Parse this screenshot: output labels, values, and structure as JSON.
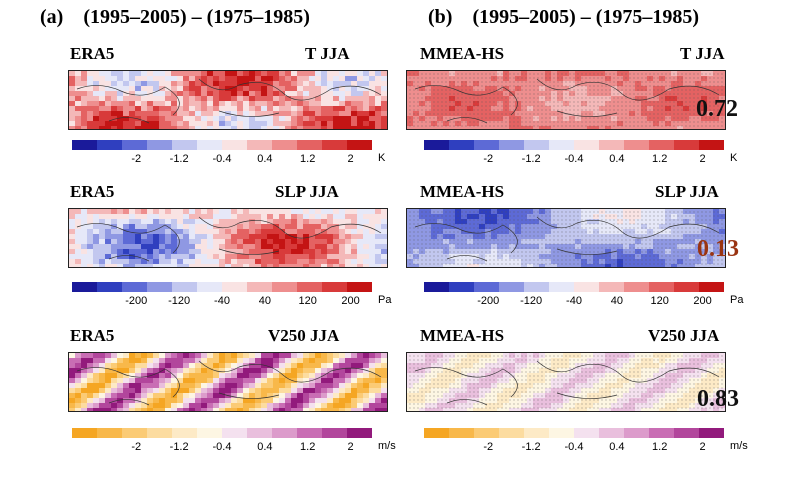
{
  "columns": [
    {
      "tag": "(a)",
      "title": "(1995–2005) – (1975–1985)"
    },
    {
      "tag": "(b)",
      "title": "(1995–2005) – (1975–1985)"
    }
  ],
  "rows": [
    {
      "left": {
        "source": "ERA5",
        "var": "T JJA"
      },
      "right": {
        "source": "MMEA-HS",
        "var": "T JJA",
        "corr": "0.72",
        "corr_color": "#111111"
      },
      "ticks": [
        "-2",
        "-1.2",
        "-0.4",
        "0.4",
        "1.2",
        "2"
      ],
      "unit": "K",
      "palette": [
        "#1a1a9a",
        "#2f3fbf",
        "#5d6ad6",
        "#8f98e3",
        "#c2c7ef",
        "#e6e8f8",
        "#f9e3e3",
        "#f4b8b8",
        "#ee8e8e",
        "#e46262",
        "#d83a3a",
        "#c41414"
      ]
    },
    {
      "left": {
        "source": "ERA5",
        "var": "SLP JJA"
      },
      "right": {
        "source": "MMEA-HS",
        "var": "SLP JJA",
        "corr": "0.13",
        "corr_color": "#9a3412"
      },
      "ticks": [
        "-200",
        "-120",
        "-40",
        "40",
        "120",
        "200"
      ],
      "unit": "Pa",
      "palette": [
        "#1a1a9a",
        "#2f3fbf",
        "#5d6ad6",
        "#8f98e3",
        "#c2c7ef",
        "#e6e8f8",
        "#f9e3e3",
        "#f4b8b8",
        "#ee8e8e",
        "#e46262",
        "#d83a3a",
        "#c41414"
      ]
    },
    {
      "left": {
        "source": "ERA5",
        "var": "V250 JJA"
      },
      "right": {
        "source": "MMEA-HS",
        "var": "V250 JJA",
        "corr": "0.83",
        "corr_color": "#111111"
      },
      "ticks": [
        "-2",
        "-1.2",
        "-0.4",
        "0.4",
        "1.2",
        "2"
      ],
      "unit": "m/s",
      "palette": [
        "#f5a623",
        "#f8b84a",
        "#fbcb75",
        "#fcdca0",
        "#fdeac6",
        "#fdf6e3",
        "#f4e1ef",
        "#e9bfdd",
        "#dc9bcb",
        "#c96db4",
        "#b2469c",
        "#921a7c"
      ]
    }
  ]
}
